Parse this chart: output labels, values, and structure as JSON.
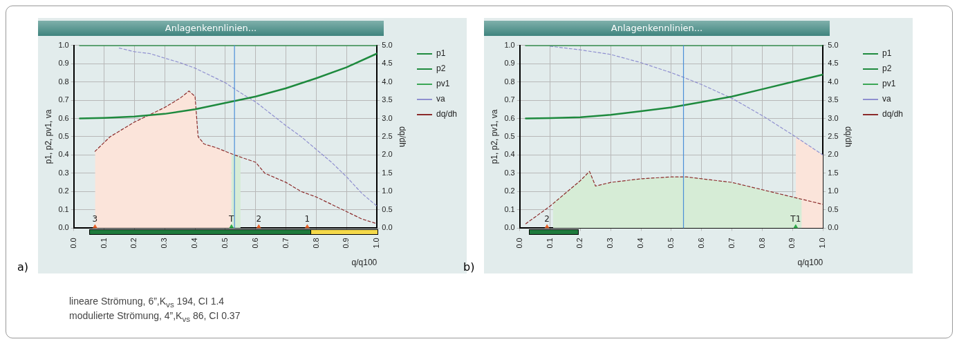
{
  "chart_data": [
    {
      "type": "line",
      "title": "Anlagenkennlinien...",
      "subtitle": "a)",
      "xlabel": "q/q100",
      "ylabel": "p1, p2, pv1, va",
      "y2label": "dq/dh",
      "xlim": [
        0,
        1
      ],
      "ylim": [
        0,
        1
      ],
      "y2lim": [
        0,
        5
      ],
      "xticks": [
        {
          "value": 0,
          "label": "0.0"
        },
        {
          "value": 0.1,
          "label": "0.1"
        },
        {
          "value": 0.2,
          "label": "0.2"
        },
        {
          "value": 0.3,
          "label": "0.3"
        },
        {
          "value": 0.4,
          "label": "0.4"
        },
        {
          "value": 0.5,
          "label": "0.5"
        },
        {
          "value": 0.6,
          "label": "0.6"
        },
        {
          "value": 0.7,
          "label": "0.7"
        },
        {
          "value": 0.8,
          "label": "0.8"
        },
        {
          "value": 0.9,
          "label": "0.9"
        },
        {
          "value": 1,
          "label": "1.0"
        }
      ],
      "yticks": [
        {
          "value": 0,
          "label": "0.0"
        },
        {
          "value": 0.1,
          "label": "0.1"
        },
        {
          "value": 0.2,
          "label": "0.2"
        },
        {
          "value": 0.3,
          "label": "0.3"
        },
        {
          "value": 0.4,
          "label": "0.4"
        },
        {
          "value": 0.5,
          "label": "0.5"
        },
        {
          "value": 0.6,
          "label": "0.6"
        },
        {
          "value": 0.7,
          "label": "0.7"
        },
        {
          "value": 0.8,
          "label": "0.8"
        },
        {
          "value": 0.9,
          "label": "0.9"
        },
        {
          "value": 1,
          "label": "1.0"
        }
      ],
      "y2ticks": [
        {
          "value": 0,
          "label": "0.0"
        },
        0.5,
        {
          "value": 1,
          "label": "1.0"
        },
        1.5,
        {
          "value": 2,
          "label": "2.0"
        },
        2.5,
        {
          "value": 3,
          "label": "3.0"
        },
        3.5,
        {
          "value": 4,
          "label": "4.0"
        },
        4.5,
        {
          "value": 5,
          "label": "5.0"
        }
      ],
      "grid": true,
      "legend": "top right",
      "series": [
        {
          "type": "area",
          "axis": "y2",
          "color": "#fbe4da",
          "x": [
            0.07,
            0.12,
            0.2,
            0.25,
            0.3,
            0.35,
            0.38,
            0.4,
            0.41,
            0.43,
            0.47,
            0.52
          ],
          "values": [
            2.1,
            2.5,
            2.9,
            3.1,
            3.3,
            3.55,
            3.75,
            3.6,
            2.5,
            2.3,
            2.2,
            2.02
          ]
        },
        {
          "type": "area",
          "axis": "y2",
          "color": "#d6ecd6",
          "x": [
            0.52,
            0.55
          ],
          "values": [
            2.02,
            1.95
          ]
        },
        {
          "name": "p1",
          "type": "line",
          "color": "#1e8a3e",
          "line_style": "solid",
          "marker": "none",
          "x": [
            0.02,
            1.0
          ],
          "values": [
            1,
            1
          ]
        },
        {
          "name": "p2",
          "type": "line",
          "color": "#1e8a3e",
          "line_style": "solid",
          "marker": "none",
          "x": [
            0.02,
            0.1,
            0.2,
            0.3,
            0.4,
            0.5,
            0.53,
            0.6,
            0.7,
            0.8,
            0.9,
            1.0
          ],
          "values": [
            0.6,
            0.603,
            0.61,
            0.625,
            0.65,
            0.685,
            0.695,
            0.72,
            0.765,
            0.82,
            0.88,
            0.955
          ]
        },
        {
          "name": "pv1",
          "type": "line",
          "color": "#3aa655",
          "line_style": "solid",
          "marker": "none"
        },
        {
          "name": "va",
          "type": "line",
          "color": "#8f8fd0",
          "line_style": "dashed",
          "marker": "none",
          "x": [
            0.15,
            0.2,
            0.25,
            0.3,
            0.35,
            0.4,
            0.45,
            0.5,
            0.55,
            0.6,
            0.65,
            0.7,
            0.75,
            0.8,
            0.85,
            0.9,
            0.95,
            1.0
          ],
          "values": [
            0.985,
            0.965,
            0.955,
            0.93,
            0.905,
            0.875,
            0.835,
            0.795,
            0.74,
            0.69,
            0.625,
            0.56,
            0.5,
            0.43,
            0.36,
            0.28,
            0.19,
            0.12
          ]
        },
        {
          "name": "dq/dh",
          "type": "line",
          "axis": "y2",
          "color": "#8b2a2a",
          "line_style": "dashed",
          "marker": "none",
          "x": [
            0.07,
            0.12,
            0.2,
            0.25,
            0.3,
            0.35,
            0.38,
            0.4,
            0.41,
            0.43,
            0.47,
            0.53,
            0.6,
            0.63,
            0.7,
            0.75,
            0.8,
            0.85,
            0.9,
            0.95,
            1.0
          ],
          "values": [
            2.1,
            2.5,
            2.9,
            3.1,
            3.3,
            3.55,
            3.75,
            3.6,
            2.5,
            2.3,
            2.2,
            2.0,
            1.8,
            1.5,
            1.25,
            1.0,
            0.85,
            0.65,
            0.45,
            0.25,
            0.12
          ]
        },
        {
          "type": "scatter",
          "marker": "triangle",
          "x": [
            0.07,
            0.52,
            0.61,
            0.77
          ],
          "values": [
            0,
            0,
            0,
            0
          ],
          "colors": [
            "#e8622a",
            "#2eaa4a",
            "#e8622a",
            "#e8622a"
          ]
        }
      ],
      "ref_lines": [
        {
          "axis": "x",
          "value": 0.53,
          "color": "#4a8fd8"
        }
      ],
      "annotations": [
        {
          "text": "3",
          "x": 0.07,
          "y": 0
        },
        {
          "text": "T",
          "x": 0.52,
          "y": 0
        },
        {
          "text": "2",
          "x": 0.61,
          "y": 0
        },
        {
          "text": "1",
          "x": 0.77,
          "y": 0
        },
        "lineare Strömung, 6”,K$_{vs}$ 194, CI 1.4",
        "modulierte Strömung, 4”,K$_{vs}$ 86, CI 0.37"
      ]
    },
    {
      "type": "line",
      "title": "Anlagenkennlinien...",
      "subtitle": "b)",
      "xlabel": "q/q100",
      "ylabel": "p1, p2, pv1, va",
      "y2label": "dq/dh",
      "xlim": [
        0,
        1
      ],
      "ylim": [
        0,
        1
      ],
      "y2lim": [
        0,
        5
      ],
      "xticks": [
        {
          "value": 0,
          "label": "0.0"
        },
        {
          "value": 0.1,
          "label": "0.1"
        },
        {
          "value": 0.2,
          "label": "0.2"
        },
        {
          "value": 0.3,
          "label": "0.3"
        },
        {
          "value": 0.4,
          "label": "0.4"
        },
        {
          "value": 0.5,
          "label": "0.5"
        },
        {
          "value": 0.6,
          "label": "0.6"
        },
        {
          "value": 0.7,
          "label": "0.7"
        },
        {
          "value": 0.8,
          "label": "0.8"
        },
        {
          "value": 0.9,
          "label": "0.9"
        },
        {
          "value": 1,
          "label": "1.0"
        }
      ],
      "yticks": [
        {
          "value": 0,
          "label": "0.0"
        },
        {
          "value": 0.1,
          "label": "0.1"
        },
        {
          "value": 0.2,
          "label": "0.2"
        },
        {
          "value": 0.3,
          "label": "0.3"
        },
        {
          "value": 0.4,
          "label": "0.4"
        },
        {
          "value": 0.5,
          "label": "0.5"
        },
        {
          "value": 0.6,
          "label": "0.6"
        },
        {
          "value": 0.7,
          "label": "0.7"
        },
        {
          "value": 0.8,
          "label": "0.8"
        },
        {
          "value": 0.9,
          "label": "0.9"
        },
        {
          "value": 1,
          "label": "1.0"
        }
      ],
      "y2ticks": [
        {
          "value": 0,
          "label": "0.0"
        },
        0.5,
        {
          "value": 1,
          "label": "1.0"
        },
        1.5,
        {
          "value": 2,
          "label": "2.0"
        },
        2.5,
        {
          "value": 3,
          "label": "3.0"
        },
        3.5,
        {
          "value": 4,
          "label": "4.0"
        },
        4.5,
        {
          "value": 5,
          "label": "5.0"
        }
      ],
      "grid": true,
      "legend": "top right",
      "series": [
        {
          "type": "area",
          "axis": "y2",
          "color": "#d6ecd6",
          "x": [
            0.11,
            0.15,
            0.2,
            0.23,
            0.25,
            0.3,
            0.4,
            0.5,
            0.55,
            0.6,
            0.7,
            0.8,
            0.9,
            0.93
          ],
          "values": [
            0.7,
            0.95,
            1.3,
            1.55,
            1.15,
            1.25,
            1.35,
            1.4,
            1.4,
            1.35,
            1.25,
            1.05,
            0.85,
            0.8
          ]
        },
        {
          "type": "area",
          "color": "#fbe4da",
          "x": [
            0.91,
            1.0
          ],
          "values": [
            0.5,
            0.4
          ]
        },
        {
          "name": "p1",
          "type": "line",
          "color": "#1e8a3e",
          "line_style": "solid",
          "marker": "none",
          "x": [
            0.02,
            1.0
          ],
          "values": [
            1,
            1
          ]
        },
        {
          "name": "p2",
          "type": "line",
          "color": "#1e8a3e",
          "line_style": "solid",
          "marker": "none",
          "x": [
            0.02,
            0.1,
            0.2,
            0.3,
            0.4,
            0.5,
            0.6,
            0.7,
            0.8,
            0.9,
            1.0
          ],
          "values": [
            0.6,
            0.602,
            0.607,
            0.62,
            0.64,
            0.66,
            0.69,
            0.72,
            0.76,
            0.8,
            0.84
          ]
        },
        {
          "name": "pv1",
          "type": "line",
          "color": "#3aa655",
          "line_style": "solid",
          "marker": "none"
        },
        {
          "name": "va",
          "type": "line",
          "color": "#8f8fd0",
          "line_style": "dashed",
          "marker": "none",
          "x": [
            0.1,
            0.2,
            0.3,
            0.4,
            0.5,
            0.54,
            0.6,
            0.7,
            0.8,
            0.9,
            1.0
          ],
          "values": [
            0.995,
            0.975,
            0.95,
            0.905,
            0.85,
            0.825,
            0.785,
            0.71,
            0.615,
            0.51,
            0.4
          ]
        },
        {
          "name": "dq/dh",
          "type": "line",
          "axis": "y2",
          "color": "#8b2a2a",
          "line_style": "dashed",
          "marker": "none",
          "x": [
            0.02,
            0.1,
            0.15,
            0.2,
            0.23,
            0.25,
            0.3,
            0.4,
            0.5,
            0.55,
            0.6,
            0.7,
            0.8,
            0.9,
            0.95,
            1.0
          ],
          "values": [
            0.12,
            0.6,
            0.95,
            1.3,
            1.55,
            1.15,
            1.25,
            1.35,
            1.4,
            1.4,
            1.35,
            1.25,
            1.05,
            0.85,
            0.75,
            0.65
          ]
        },
        {
          "type": "scatter",
          "marker": "triangle",
          "x": [
            0.09,
            0.91
          ],
          "values": [
            0,
            0
          ],
          "colors": [
            "#e8622a",
            "#2eaa4a"
          ]
        }
      ],
      "ref_lines": [
        {
          "axis": "x",
          "value": 0.54,
          "color": "#4a8fd8"
        }
      ],
      "annotations": [
        {
          "text": "2",
          "x": 0.09,
          "y": 0
        },
        {
          "text": "T1",
          "x": 0.91,
          "y": 0
        }
      ]
    }
  ]
}
